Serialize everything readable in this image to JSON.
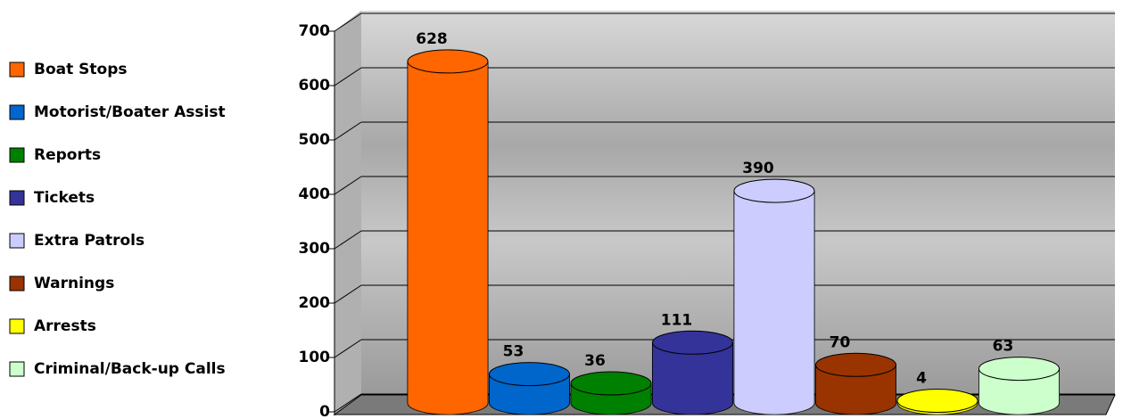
{
  "chart_data": {
    "type": "bar3d",
    "categories": [
      "Boat Stops",
      "Motorist/Boater Assist",
      "Reports",
      "Tickets",
      "Extra Patrols",
      "Warnings",
      "Arrests",
      "Criminal/Back-up Calls"
    ],
    "values": [
      628,
      53,
      36,
      111,
      390,
      70,
      4,
      63
    ],
    "colors": [
      "#ff6600",
      "#0066cc",
      "#008000",
      "#333399",
      "#ccccff",
      "#993300",
      "#ffff00",
      "#ccffcc"
    ],
    "ylim": [
      0,
      700
    ],
    "yticks": [
      0,
      100,
      200,
      300,
      400,
      500,
      600,
      700
    ],
    "grid": true,
    "legend": "left"
  }
}
